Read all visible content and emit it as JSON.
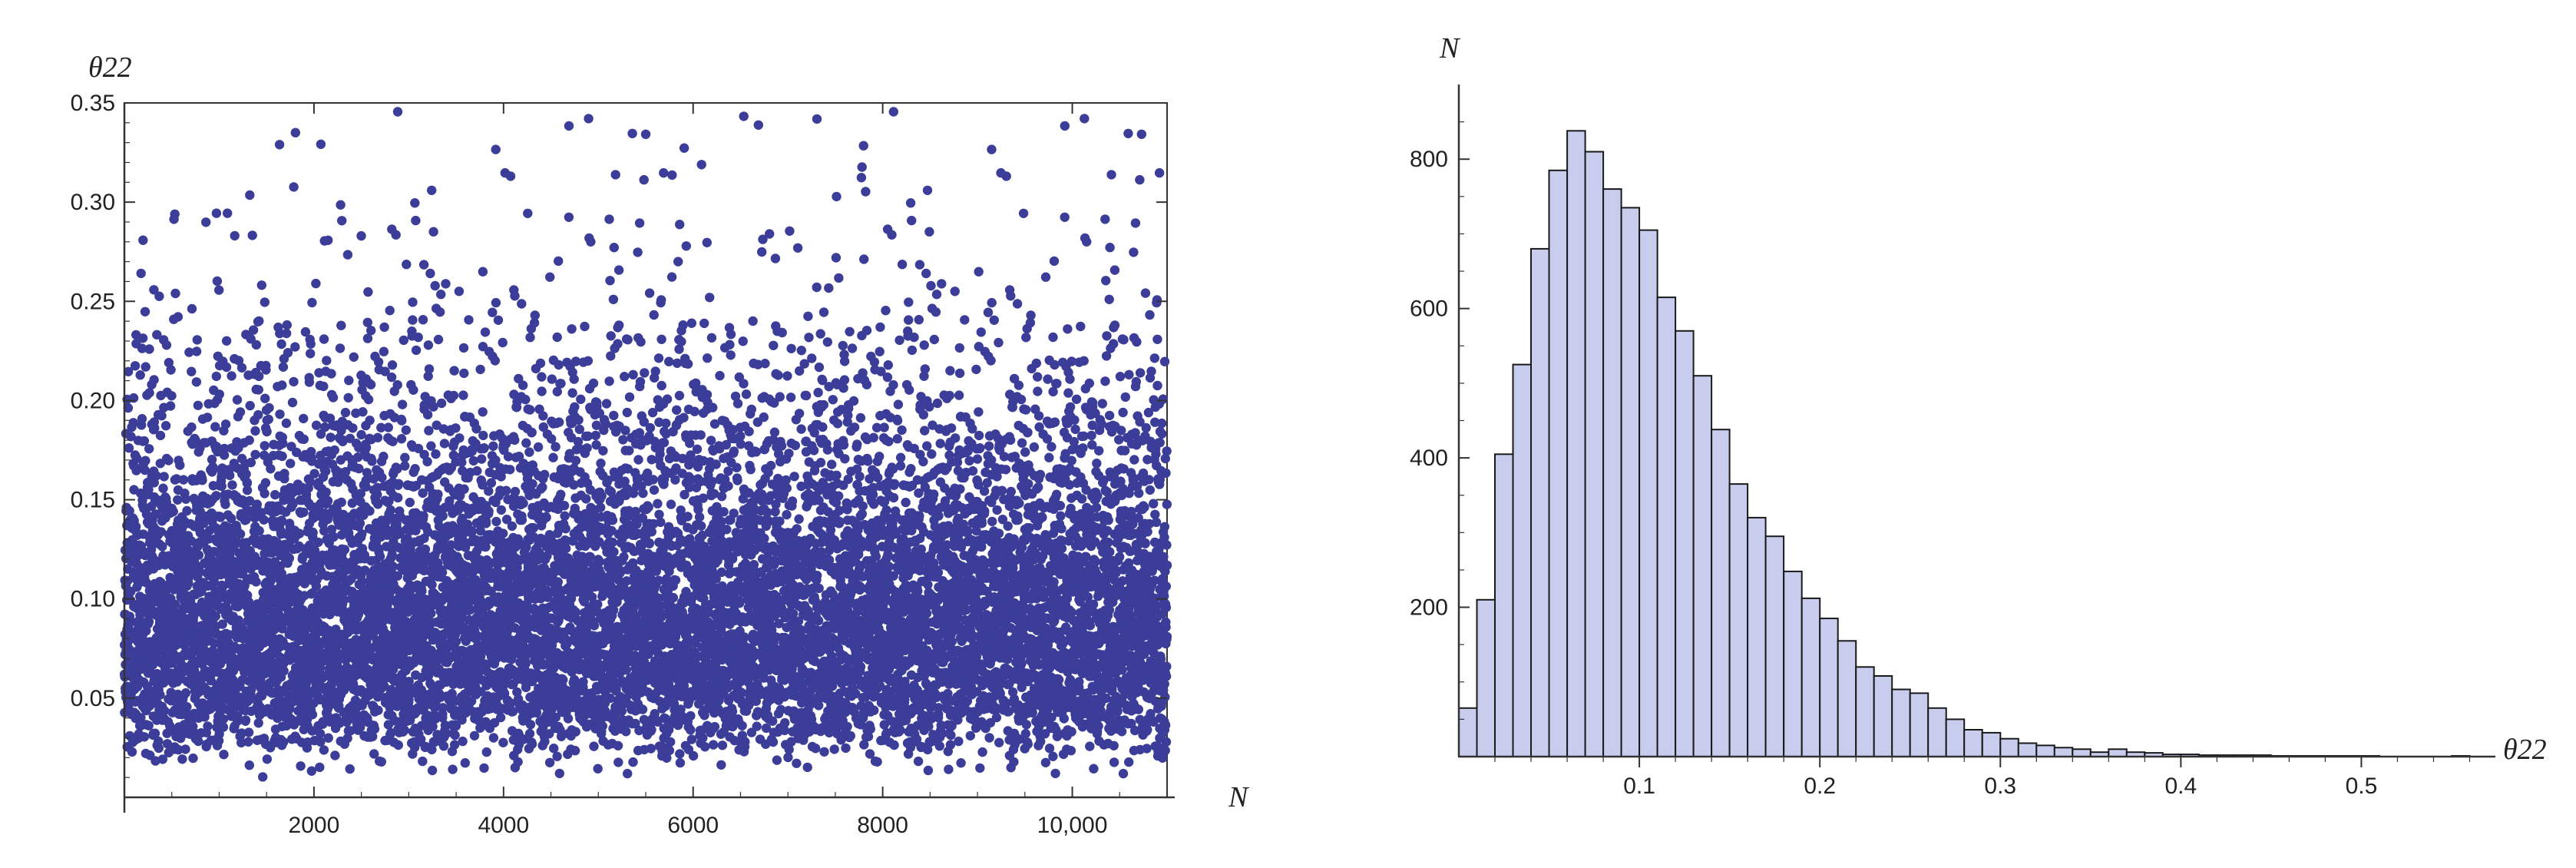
{
  "chart_data": [
    {
      "type": "scatter",
      "title": "",
      "xlabel": "N",
      "ylabel": "θ22",
      "xlim": [
        0,
        11000
      ],
      "ylim": [
        0,
        0.35
      ],
      "x_ticks": [
        2000,
        4000,
        6000,
        8000,
        10000
      ],
      "x_tick_labels": [
        "2000",
        "4000",
        "6000",
        "8000",
        "10,000"
      ],
      "y_ticks": [
        0.05,
        0.1,
        0.15,
        0.2,
        0.25,
        0.3,
        0.35
      ],
      "y_tick_labels": [
        "0.05",
        "0.10",
        "0.15",
        "0.20",
        "0.25",
        "0.30",
        "0.35"
      ],
      "n_points": 11000,
      "distribution_note_bins": [
        0,
        0.02,
        0.04,
        0.06,
        0.08,
        0.1,
        0.12,
        0.14,
        0.16,
        0.18,
        0.2,
        0.22,
        0.24,
        0.26,
        0.28,
        0.3,
        0.32,
        0.35
      ],
      "marker_color": "#3b3d99",
      "grid": false,
      "frame": true
    },
    {
      "type": "bar",
      "title": "",
      "xlabel": "θ22",
      "ylabel": "N",
      "bin_width": 0.01,
      "bin_starts": [
        0.0,
        0.01,
        0.02,
        0.03,
        0.04,
        0.05,
        0.06,
        0.07,
        0.08,
        0.09,
        0.1,
        0.11,
        0.12,
        0.13,
        0.14,
        0.15,
        0.16,
        0.17,
        0.18,
        0.19,
        0.2,
        0.21,
        0.22,
        0.23,
        0.24,
        0.25,
        0.26,
        0.27,
        0.28,
        0.29,
        0.3,
        0.31,
        0.32,
        0.33,
        0.34,
        0.35,
        0.36,
        0.37,
        0.38,
        0.39,
        0.4,
        0.41,
        0.42,
        0.43,
        0.44,
        0.45,
        0.46,
        0.47,
        0.48,
        0.49,
        0.5,
        0.51,
        0.52,
        0.53,
        0.54,
        0.55
      ],
      "values": [
        65,
        210,
        405,
        525,
        680,
        785,
        838,
        810,
        760,
        735,
        705,
        615,
        570,
        510,
        438,
        365,
        320,
        295,
        248,
        212,
        185,
        155,
        120,
        108,
        90,
        85,
        65,
        50,
        36,
        32,
        24,
        18,
        15,
        12,
        10,
        6,
        10,
        6,
        5,
        3,
        3,
        2,
        2,
        2,
        2,
        1,
        1,
        1,
        1,
        1,
        1,
        0,
        0,
        0,
        0,
        1
      ],
      "xlim": [
        0,
        0.57
      ],
      "ylim": [
        0,
        900
      ],
      "x_ticks": [
        0.1,
        0.2,
        0.3,
        0.4,
        0.5
      ],
      "x_tick_labels": [
        "0.1",
        "0.2",
        "0.3",
        "0.4",
        "0.5"
      ],
      "y_ticks": [
        200,
        400,
        600,
        800
      ],
      "y_tick_labels": [
        "200",
        "400",
        "600",
        "800"
      ],
      "bar_fill": "#c8cdee",
      "bar_stroke": "#1a1a1a",
      "grid": false
    }
  ]
}
